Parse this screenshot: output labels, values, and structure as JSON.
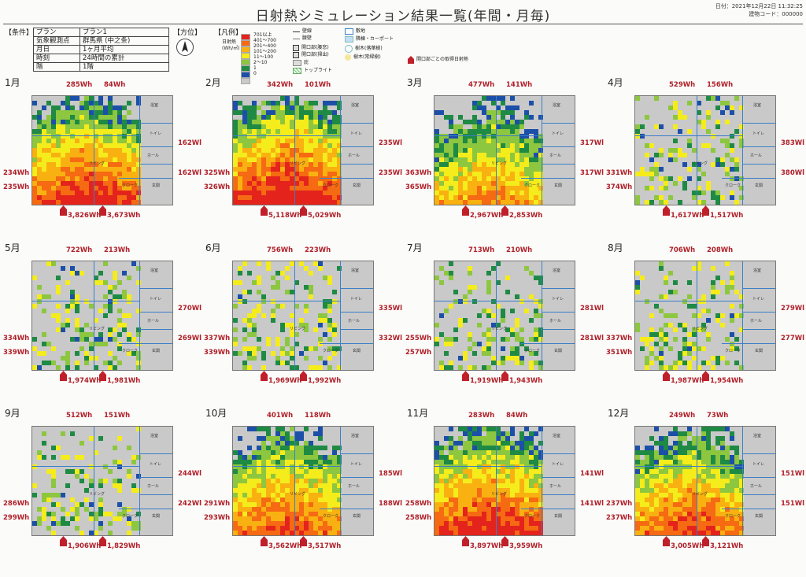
{
  "title": "日射熱シミュレーション結果一覧(年間・月毎)",
  "date_label": "日付：2021年12月22日 11:32:25",
  "building_code_label": "建物コード：000000",
  "conditions": {
    "label": "【条件】",
    "rows": [
      {
        "key": "プラン",
        "value": "プラン1"
      },
      {
        "key": "気象観測点",
        "value": "群馬県 (中之条)"
      },
      {
        "key": "月日",
        "value": "1ヶ月平均"
      },
      {
        "key": "時刻",
        "value": "24時間の累計"
      },
      {
        "key": "階",
        "value": "1階"
      }
    ]
  },
  "direction_label": "【方位】",
  "legend": {
    "label": "【凡例】",
    "unit_line1": "日射熱",
    "unit_line2": "(Wh/㎡)",
    "scale": [
      {
        "text": "701以上",
        "color": "#e4231d"
      },
      {
        "text": "401～700",
        "color": "#f56a12"
      },
      {
        "text": "201～400",
        "color": "#f9b111"
      },
      {
        "text": "101～200",
        "color": "#f5ec1c"
      },
      {
        "text": "11～100",
        "color": "#8dc63f"
      },
      {
        "text": "2～10",
        "color": "#1e8a44"
      },
      {
        "text": "1",
        "color": "#1c4fa8"
      },
      {
        "text": "0",
        "color": "#c9c9c9"
      }
    ],
    "items": [
      {
        "text": "壁線"
      },
      {
        "text": "腰壁"
      },
      {
        "text": "開口部(腰窓)"
      },
      {
        "text": "開口部(掃出)"
      },
      {
        "text": "庇"
      },
      {
        "text": "トップライト"
      },
      {
        "text": "敷地"
      },
      {
        "text": "隣棟・カーポート"
      },
      {
        "text": "樹木(落葉樹)"
      },
      {
        "text": "樹木(常緑樹)"
      },
      {
        "text": "開口部ごとの取得日射熱"
      }
    ]
  },
  "rooms": {
    "bath": "浴室",
    "toilet": "トイレ",
    "hall": "ホール",
    "living": "リビング",
    "closet": "クローク",
    "entrance": "玄関"
  },
  "months": [
    {
      "label": "1月",
      "top_left": "285Wh",
      "top_right": "84Wh",
      "left_top": "234Wh",
      "left_bottom": "235Wh",
      "right_top": "162Wl",
      "right_bottom": "162Wl",
      "bottom_left": "3,826Wh",
      "bottom_right": "3,673Wh",
      "level": 0.95
    },
    {
      "label": "2月",
      "top_left": "342Wh",
      "top_right": "101Wh",
      "left_top": "325Wh",
      "left_bottom": "326Wh",
      "right_top": "235Wl",
      "right_bottom": "235Wl",
      "bottom_left": "5,118Wh",
      "bottom_right": "5,029Wh",
      "level": 1.0
    },
    {
      "label": "3月",
      "top_left": "477Wh",
      "top_right": "141Wh",
      "left_top": "363Wh",
      "left_bottom": "365Wh",
      "right_top": "317Wl",
      "right_bottom": "317Wl",
      "bottom_left": "2,967Wh",
      "bottom_right": "2,853Wh",
      "level": 0.7
    },
    {
      "label": "4月",
      "top_left": "529Wh",
      "top_right": "156Wh",
      "left_top": "331Wh",
      "left_bottom": "374Wh",
      "right_top": "383Wl",
      "right_bottom": "380Wl",
      "bottom_left": "1,617Wh",
      "bottom_right": "1,517Wh",
      "level": 0.4
    },
    {
      "label": "5月",
      "top_left": "722Wh",
      "top_right": "213Wh",
      "left_top": "334Wh",
      "left_bottom": "339Wh",
      "right_top": "270Wl",
      "right_bottom": "269Wl",
      "bottom_left": "1,974Wh",
      "bottom_right": "1,981Wh",
      "level": 0.15
    },
    {
      "label": "6月",
      "top_left": "756Wh",
      "top_right": "223Wh",
      "left_top": "337Wh",
      "left_bottom": "339Wh",
      "right_top": "335Wl",
      "right_bottom": "332Wl",
      "bottom_left": "1,969Wh",
      "bottom_right": "1,992Wh",
      "level": 0.1
    },
    {
      "label": "7月",
      "top_left": "713Wh",
      "top_right": "210Wh",
      "left_top": "255Wh",
      "left_bottom": "257Wh",
      "right_top": "281Wl",
      "right_bottom": "281Wl",
      "bottom_left": "1,919Wh",
      "bottom_right": "1,943Wh",
      "level": 0.12
    },
    {
      "label": "8月",
      "top_left": "706Wh",
      "top_right": "208Wh",
      "left_top": "337Wh",
      "left_bottom": "351Wh",
      "right_top": "279Wl",
      "right_bottom": "277Wl",
      "bottom_left": "1,987Wh",
      "bottom_right": "1,954Wh",
      "level": 0.2
    },
    {
      "label": "9月",
      "top_left": "512Wh",
      "top_right": "151Wh",
      "left_top": "286Wh",
      "left_bottom": "299Wh",
      "right_top": "244Wl",
      "right_bottom": "242Wl",
      "bottom_left": "1,906Wh",
      "bottom_right": "1,829Wh",
      "level": 0.45
    },
    {
      "label": "10月",
      "top_left": "401Wh",
      "top_right": "118Wh",
      "left_top": "291Wh",
      "left_bottom": "293Wh",
      "right_top": "185Wl",
      "right_bottom": "188Wl",
      "bottom_left": "3,562Wh",
      "bottom_right": "3,517Wh",
      "level": 0.85
    },
    {
      "label": "11月",
      "top_left": "283Wh",
      "top_right": "84Wh",
      "left_top": "258Wh",
      "left_bottom": "258Wh",
      "right_top": "141Wl",
      "right_bottom": "141Wl",
      "bottom_left": "3,897Wh",
      "bottom_right": "3,959Wh",
      "level": 0.95
    },
    {
      "label": "12月",
      "top_left": "249Wh",
      "top_right": "73Wh",
      "left_top": "237Wh",
      "left_bottom": "237Wh",
      "right_top": "151Wl",
      "right_bottom": "151Wl",
      "bottom_left": "3,005Wh",
      "bottom_right": "3,121Wh",
      "level": 0.85
    }
  ]
}
